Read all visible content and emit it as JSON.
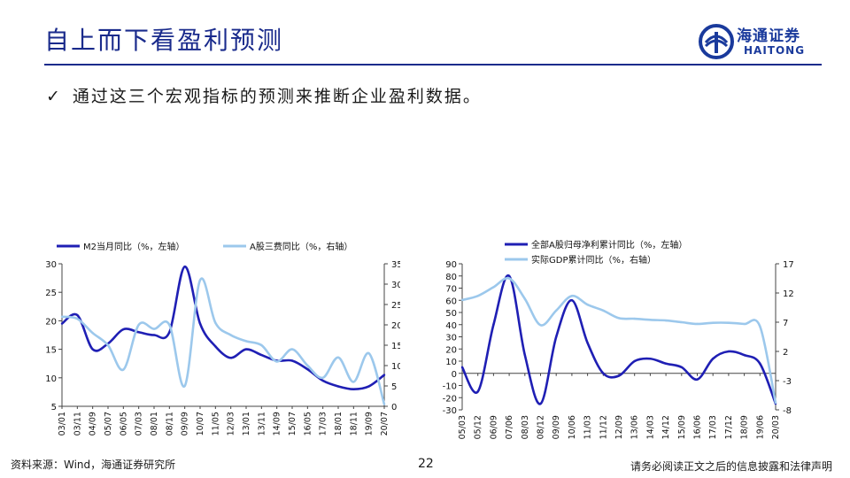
{
  "header": {
    "title": "自上而下看盈利预测"
  },
  "logo": {
    "cn": "海通证券",
    "en": "HAITONG"
  },
  "bullet": {
    "check": "✓",
    "text": "通过这三个宏观指标的预测来推断企业盈利数据。"
  },
  "footer": {
    "source": "资料来源：Wind，海通证券研究所",
    "page": "22",
    "disclaimer": "请务必阅读正文之后的信息披露和法律声明"
  },
  "colors": {
    "navy": "#1a2b8c",
    "dark_series": "#1f1fb4",
    "light_series": "#9cc8ec"
  },
  "chart_data": [
    {
      "type": "line",
      "title": "",
      "x": [
        "03/01",
        "03/11",
        "04/09",
        "05/07",
        "06/05",
        "07/03",
        "08/01",
        "08/11",
        "09/09",
        "10/07",
        "11/05",
        "12/03",
        "13/01",
        "13/11",
        "14/09",
        "15/07",
        "16/05",
        "17/03",
        "18/01",
        "18/11",
        "19/09",
        "20/07"
      ],
      "ylim_left": [
        5,
        30
      ],
      "yticks_left": [
        5,
        10,
        15,
        20,
        25,
        30
      ],
      "ylim_right": [
        0,
        35
      ],
      "yticks_right": [
        0,
        5,
        10,
        15,
        20,
        25,
        30,
        35
      ],
      "series": [
        {
          "name": "M2当月同比（%，左轴）",
          "axis": "left",
          "color": "#1f1fb4",
          "values": [
            19.5,
            21.0,
            15.0,
            16.0,
            18.5,
            18.0,
            17.5,
            18.0,
            29.5,
            19.5,
            15.5,
            13.5,
            15.0,
            14.0,
            13.0,
            13.0,
            11.5,
            9.5,
            8.5,
            8.0,
            8.5,
            10.5
          ]
        },
        {
          "name": "A股三费同比（%，右轴）",
          "axis": "right",
          "color": "#9cc8ec",
          "values": [
            22.0,
            21.5,
            18.0,
            15.0,
            9.0,
            20.0,
            19.0,
            20.0,
            5.0,
            31.0,
            20.5,
            17.5,
            16.0,
            15.0,
            11.0,
            14.0,
            10.0,
            7.0,
            12.0,
            6.0,
            13.0,
            0.5
          ]
        }
      ]
    },
    {
      "type": "line",
      "title": "",
      "x": [
        "05/03",
        "05/12",
        "06/09",
        "07/06",
        "08/03",
        "08/12",
        "09/09",
        "10/06",
        "11/03",
        "11/12",
        "12/09",
        "13/06",
        "14/03",
        "14/12",
        "15/09",
        "16/06",
        "17/03",
        "17/12",
        "18/09",
        "19/06",
        "20/03"
      ],
      "ylim_left": [
        -30,
        90
      ],
      "yticks_left": [
        -30,
        -20,
        -10,
        0,
        10,
        20,
        30,
        40,
        50,
        60,
        70,
        80,
        90
      ],
      "ylim_right": [
        -8,
        17
      ],
      "yticks_right": [
        -8,
        -3,
        2,
        7,
        12,
        17
      ],
      "series": [
        {
          "name": "全部A股归母净利累计同比（%，左轴）",
          "axis": "left",
          "color": "#1f1fb4",
          "values": [
            5,
            -15,
            40,
            80,
            15,
            -25,
            30,
            60,
            25,
            0,
            -2,
            10,
            12,
            8,
            5,
            -5,
            12,
            18,
            15,
            8,
            -25
          ]
        },
        {
          "name": "实际GDP累计同比（%，右轴）",
          "axis": "right",
          "color": "#9cc8ec",
          "values": [
            10.8,
            11.5,
            13.0,
            14.5,
            11.0,
            6.5,
            9.0,
            11.5,
            10.0,
            9.0,
            7.7,
            7.6,
            7.4,
            7.3,
            7.0,
            6.7,
            6.9,
            6.9,
            6.7,
            6.3,
            -6.8
          ]
        }
      ]
    }
  ]
}
